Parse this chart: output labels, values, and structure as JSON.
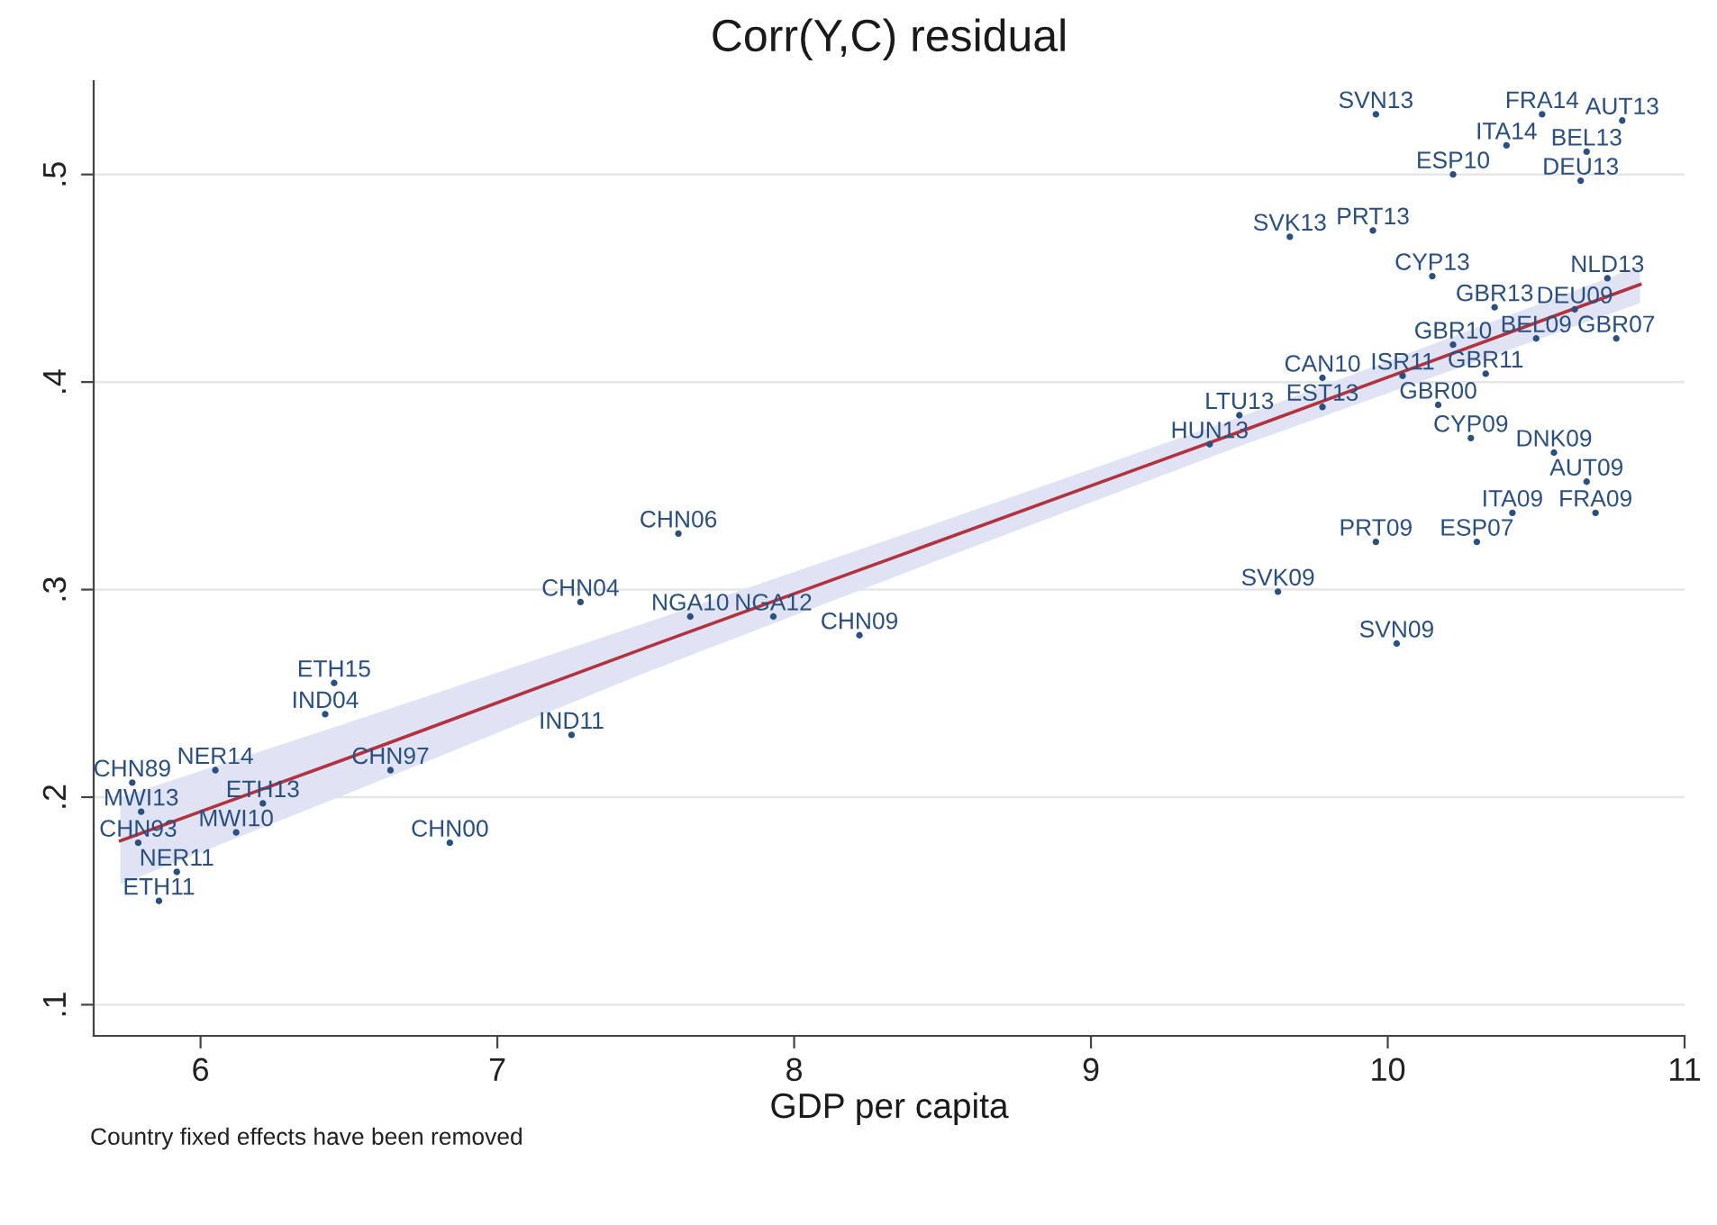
{
  "chart_data": {
    "type": "scatter",
    "title": "Corr(Y,C) residual",
    "xlabel": "GDP per capita",
    "annotations": [
      "Country fixed effects have been removed"
    ],
    "xlim": [
      5.64,
      11.0
    ],
    "xticks": [
      6,
      7,
      8,
      9,
      10,
      11
    ],
    "ylim": [
      0.085,
      0.545
    ],
    "yticks": [
      {
        "value": 0.1,
        "label": ".1"
      },
      {
        "value": 0.2,
        "label": ".2"
      },
      {
        "value": 0.3,
        "label": ".3"
      },
      {
        "value": 0.4,
        "label": ".4"
      },
      {
        "value": 0.5,
        "label": ".5"
      }
    ],
    "grid": "y",
    "series": [
      {
        "type": "line",
        "color": "#b2333f",
        "x": [
          5.73,
          6.5,
          7.5,
          8.5,
          9.5,
          10.85
        ],
        "values": [
          0.179,
          0.219,
          0.272,
          0.324,
          0.376,
          0.447
        ],
        "lower": [
          0.158,
          0.202,
          0.26,
          0.315,
          0.369,
          0.438
        ],
        "upper": [
          0.2,
          0.236,
          0.284,
          0.333,
          0.383,
          0.456
        ]
      },
      {
        "color": "#2b4f7e",
        "marker": "circle",
        "x": [
          5.77,
          5.8,
          6.45,
          6.42,
          6.05,
          6.64,
          6.21,
          6.12,
          6.84,
          5.79,
          5.92,
          5.86,
          7.61,
          7.28,
          7.65,
          7.93,
          8.22,
          7.25,
          9.96,
          10.52,
          10.79,
          10.22,
          10.4,
          10.67,
          10.65,
          9.67,
          9.95,
          10.15,
          10.74,
          10.36,
          10.63,
          10.5,
          10.77,
          10.22,
          10.33,
          10.05,
          9.78,
          9.78,
          10.17,
          9.4,
          9.5,
          10.28,
          10.56,
          10.67,
          10.42,
          10.7,
          9.96,
          10.3,
          9.63,
          10.03
        ],
        "values": [
          0.207,
          0.193,
          0.255,
          0.24,
          0.213,
          0.213,
          0.197,
          0.183,
          0.178,
          0.178,
          0.164,
          0.15,
          0.327,
          0.294,
          0.287,
          0.287,
          0.278,
          0.23,
          0.529,
          0.529,
          0.526,
          0.5,
          0.514,
          0.511,
          0.497,
          0.47,
          0.473,
          0.451,
          0.45,
          0.436,
          0.435,
          0.421,
          0.421,
          0.418,
          0.404,
          0.403,
          0.402,
          0.388,
          0.389,
          0.37,
          0.384,
          0.373,
          0.366,
          0.352,
          0.337,
          0.337,
          0.323,
          0.323,
          0.299,
          0.274
        ],
        "value_labels": [
          "CHN89",
          "MWI13",
          "ETH15",
          "IND04",
          "NER14",
          "CHN97",
          "ETH13",
          "MWI10",
          "CHN00",
          "CHN93",
          "NER11",
          "ETH11",
          "CHN06",
          "CHN04",
          "NGA10",
          "NGA12",
          "CHN09",
          "IND11",
          "SVN13",
          "FRA14",
          "AUT13",
          "ESP10",
          "ITA14",
          "BEL13",
          "DEU13",
          "SVK13",
          "PRT13",
          "CYP13",
          "NLD13",
          "GBR13",
          "DEU09",
          "BEL09",
          "GBR07",
          "GBR10",
          "GBR11",
          "ISR11",
          "CAN10",
          "EST13",
          "GBR00",
          "HUN13",
          "LTU13",
          "CYP09",
          "DNK09",
          "AUT09",
          "ITA09",
          "FRA09",
          "PRT09",
          "ESP07",
          "SVK09",
          "SVN09"
        ]
      }
    ]
  }
}
